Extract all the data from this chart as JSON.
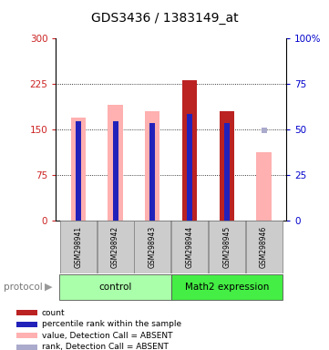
{
  "title": "GDS3436 / 1383149_at",
  "samples": [
    "GSM298941",
    "GSM298942",
    "GSM298943",
    "GSM298944",
    "GSM298945",
    "GSM298946"
  ],
  "ylim_left": [
    0,
    300
  ],
  "ylim_right": [
    0,
    100
  ],
  "yticks_left": [
    0,
    75,
    150,
    225,
    300
  ],
  "yticks_right": [
    0,
    25,
    50,
    75,
    100
  ],
  "value_bars": [
    170,
    190,
    180,
    232,
    180,
    113
  ],
  "value_absent": [
    true,
    true,
    true,
    false,
    false,
    true
  ],
  "rank_vals_left": [
    163,
    163,
    161,
    175,
    161,
    148
  ],
  "rank_absent": [
    false,
    false,
    false,
    false,
    false,
    true
  ],
  "count_bars": [
    0,
    0,
    0,
    232,
    180,
    0
  ],
  "color_value_present": "#bb2222",
  "color_value_absent": "#ffb0b0",
  "color_rank_present": "#2222bb",
  "color_rank_absent": "#aaaacc",
  "bar_width": 0.4,
  "rank_bar_width": 0.15,
  "left_axis_color": "#cc2222",
  "right_axis_color": "#0000cc",
  "grid_color": "#000000",
  "grid_lw": 0.6,
  "grid_style": "dotted",
  "grid_lines": [
    75,
    150,
    225
  ],
  "bg_color": "#ffffff",
  "control_color": "#aaffaa",
  "math_color": "#44ee44",
  "label_bg": "#cccccc",
  "legend_items": [
    "count",
    "percentile rank within the sample",
    "value, Detection Call = ABSENT",
    "rank, Detection Call = ABSENT"
  ],
  "legend_colors": [
    "#bb2222",
    "#2222bb",
    "#ffb0b0",
    "#aaaacc"
  ]
}
